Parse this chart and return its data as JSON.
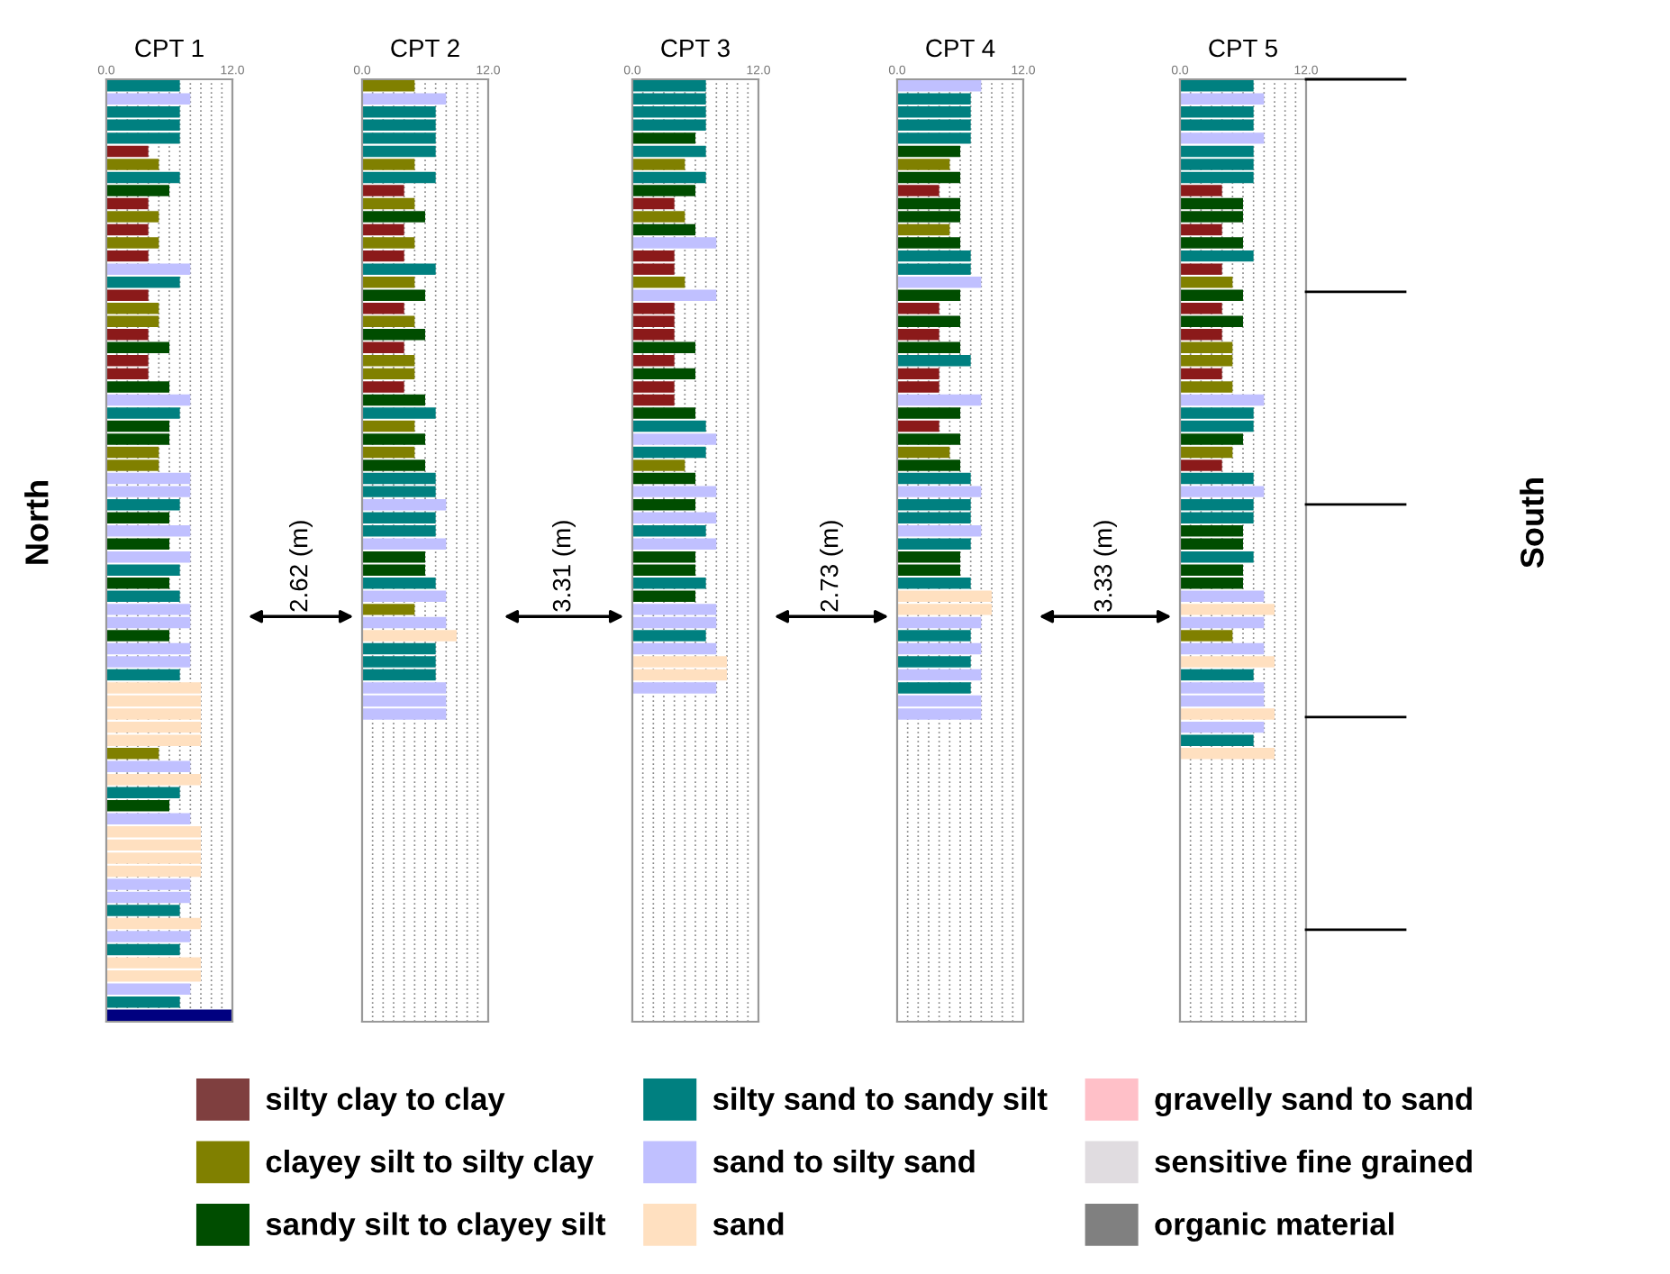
{
  "chart_data": [
    {
      "type": "bar",
      "orientation": "horizontal",
      "title": "CPT 1",
      "tick_labels": "x",
      "grid": "x",
      "xlim": [
        0,
        12
      ],
      "xticks": [
        {
          "value": 0,
          "label": "0.0"
        },
        {
          "value": 1,
          "label": null
        },
        {
          "value": 2,
          "label": null
        },
        {
          "value": 3,
          "label": null
        },
        {
          "value": 4,
          "label": null
        },
        {
          "value": 5,
          "label": null
        },
        {
          "value": 6,
          "label": null
        },
        {
          "value": 7,
          "label": null
        },
        {
          "value": 8,
          "label": null
        },
        {
          "value": 9,
          "label": null
        },
        {
          "value": 10,
          "label": null
        },
        {
          "value": 11,
          "label": null
        },
        {
          "value": 12,
          "label": "12.0"
        }
      ],
      "categories": [
        null,
        null,
        null,
        null,
        null,
        null,
        null,
        null,
        null,
        null,
        null,
        null,
        null,
        null,
        null,
        null,
        null,
        null,
        null,
        null,
        null,
        null,
        null,
        null,
        null,
        null,
        null,
        null,
        null,
        null,
        null,
        null,
        null,
        null,
        null,
        null,
        null,
        null,
        null,
        null,
        null,
        null,
        null,
        null,
        null,
        null,
        null,
        null,
        null,
        null,
        null,
        null,
        null,
        null,
        null,
        null,
        null,
        null,
        null,
        null,
        null,
        null,
        null,
        null,
        null,
        null,
        null,
        null,
        null,
        null,
        null,
        null
      ],
      "values": [
        7,
        8,
        7,
        7,
        7,
        4,
        5,
        7,
        6,
        4,
        5,
        4,
        5,
        4,
        8,
        7,
        4,
        5,
        5,
        4,
        6,
        4,
        4,
        6,
        8,
        7,
        6,
        6,
        5,
        5,
        8,
        8,
        7,
        6,
        8,
        6,
        8,
        7,
        6,
        7,
        8,
        8,
        6,
        8,
        8,
        7,
        9,
        9,
        9,
        9,
        9,
        5,
        8,
        9,
        7,
        6,
        8,
        9,
        9,
        9,
        9,
        8,
        8,
        7,
        9,
        8,
        7,
        9,
        9,
        8,
        7,
        12
      ],
      "colors": [
        "#008080",
        "#c0c0ff",
        "#008080",
        "#008080",
        "#008080",
        "#8b1a1a",
        "#808000",
        "#008080",
        "#004d00",
        "#8b1a1a",
        "#808000",
        "#8b1a1a",
        "#808000",
        "#8b1a1a",
        "#c0c0ff",
        "#008080",
        "#8b1a1a",
        "#808000",
        "#808000",
        "#8b1a1a",
        "#004d00",
        "#8b1a1a",
        "#8b1a1a",
        "#004d00",
        "#c0c0ff",
        "#008080",
        "#004d00",
        "#004d00",
        "#808000",
        "#808000",
        "#c0c0ff",
        "#c0c0ff",
        "#008080",
        "#004d00",
        "#c0c0ff",
        "#004d00",
        "#c0c0ff",
        "#008080",
        "#004d00",
        "#008080",
        "#c0c0ff",
        "#c0c0ff",
        "#004d00",
        "#c0c0ff",
        "#c0c0ff",
        "#008080",
        "#ffe0c0",
        "#ffe0c0",
        "#ffe0c0",
        "#ffe0c0",
        "#ffe0c0",
        "#808000",
        "#c0c0ff",
        "#ffe0c0",
        "#008080",
        "#004d00",
        "#c0c0ff",
        "#ffe0c0",
        "#ffe0c0",
        "#ffe0c0",
        "#ffe0c0",
        "#c0c0ff",
        "#c0c0ff",
        "#008080",
        "#ffe0c0",
        "#c0c0ff",
        "#008080",
        "#ffe0c0",
        "#ffe0c0",
        "#c0c0ff",
        "#008080",
        "#000080"
      ]
    },
    {
      "type": "bar",
      "orientation": "horizontal",
      "title": "CPT 2",
      "tick_labels": "x",
      "grid": "x",
      "xlim": [
        0,
        12
      ],
      "xticks": [
        {
          "value": 0,
          "label": "0.0"
        },
        {
          "value": 1,
          "label": null
        },
        {
          "value": 2,
          "label": null
        },
        {
          "value": 3,
          "label": null
        },
        {
          "value": 4,
          "label": null
        },
        {
          "value": 5,
          "label": null
        },
        {
          "value": 6,
          "label": null
        },
        {
          "value": 7,
          "label": null
        },
        {
          "value": 8,
          "label": null
        },
        {
          "value": 9,
          "label": null
        },
        {
          "value": 10,
          "label": null
        },
        {
          "value": 11,
          "label": null
        },
        {
          "value": 12,
          "label": "12.0"
        }
      ],
      "categories": [
        null,
        null,
        null,
        null,
        null,
        null,
        null,
        null,
        null,
        null,
        null,
        null,
        null,
        null,
        null,
        null,
        null,
        null,
        null,
        null,
        null,
        null,
        null,
        null,
        null,
        null,
        null,
        null,
        null,
        null,
        null,
        null,
        null,
        null,
        null,
        null,
        null,
        null,
        null,
        null,
        null,
        null,
        null,
        null,
        null,
        null,
        null,
        null,
        null,
        null,
        null,
        null,
        null,
        null,
        null,
        null,
        null,
        null,
        null,
        null,
        null,
        null,
        null,
        null,
        null,
        null,
        null,
        null,
        null,
        null,
        null,
        null
      ],
      "values": [
        5,
        8,
        7,
        7,
        7,
        7,
        5,
        7,
        4,
        5,
        6,
        4,
        5,
        4,
        7,
        5,
        6,
        4,
        5,
        6,
        4,
        5,
        5,
        4,
        6,
        7,
        5,
        6,
        5,
        6,
        7,
        7,
        8,
        7,
        7,
        8,
        6,
        6,
        7,
        8,
        5,
        8,
        9,
        7,
        7,
        7,
        8,
        8,
        8,
        null,
        null,
        null,
        null,
        null,
        null,
        null,
        null,
        null,
        null,
        null,
        null,
        null,
        null,
        null,
        null,
        null,
        null,
        null,
        null,
        null,
        null,
        null
      ],
      "colors": [
        "#808000",
        "#c0c0ff",
        "#008080",
        "#008080",
        "#008080",
        "#008080",
        "#808000",
        "#008080",
        "#8b1a1a",
        "#808000",
        "#004d00",
        "#8b1a1a",
        "#808000",
        "#8b1a1a",
        "#008080",
        "#808000",
        "#004d00",
        "#8b1a1a",
        "#808000",
        "#004d00",
        "#8b1a1a",
        "#808000",
        "#808000",
        "#8b1a1a",
        "#004d00",
        "#008080",
        "#808000",
        "#004d00",
        "#808000",
        "#004d00",
        "#008080",
        "#008080",
        "#c0c0ff",
        "#008080",
        "#008080",
        "#c0c0ff",
        "#004d00",
        "#004d00",
        "#008080",
        "#c0c0ff",
        "#808000",
        "#c0c0ff",
        "#ffe0c0",
        "#008080",
        "#008080",
        "#008080",
        "#c0c0ff",
        "#c0c0ff",
        "#c0c0ff",
        null,
        null,
        null,
        null,
        null,
        null,
        null,
        null,
        null,
        null,
        null,
        null,
        null,
        null,
        null,
        null,
        null,
        null,
        null,
        null,
        null,
        null,
        null
      ]
    },
    {
      "type": "bar",
      "orientation": "horizontal",
      "title": "CPT 3",
      "tick_labels": "x",
      "grid": "x",
      "xlim": [
        0,
        12
      ],
      "xticks": [
        {
          "value": 0,
          "label": "0.0"
        },
        {
          "value": 1,
          "label": null
        },
        {
          "value": 2,
          "label": null
        },
        {
          "value": 3,
          "label": null
        },
        {
          "value": 4,
          "label": null
        },
        {
          "value": 5,
          "label": null
        },
        {
          "value": 6,
          "label": null
        },
        {
          "value": 7,
          "label": null
        },
        {
          "value": 8,
          "label": null
        },
        {
          "value": 9,
          "label": null
        },
        {
          "value": 10,
          "label": null
        },
        {
          "value": 11,
          "label": null
        },
        {
          "value": 12,
          "label": "12.0"
        }
      ],
      "categories": [
        null,
        null,
        null,
        null,
        null,
        null,
        null,
        null,
        null,
        null,
        null,
        null,
        null,
        null,
        null,
        null,
        null,
        null,
        null,
        null,
        null,
        null,
        null,
        null,
        null,
        null,
        null,
        null,
        null,
        null,
        null,
        null,
        null,
        null,
        null,
        null,
        null,
        null,
        null,
        null,
        null,
        null,
        null,
        null,
        null,
        null,
        null,
        null,
        null,
        null,
        null,
        null,
        null,
        null,
        null,
        null,
        null,
        null,
        null,
        null,
        null,
        null,
        null,
        null,
        null,
        null,
        null,
        null,
        null,
        null,
        null,
        null
      ],
      "values": [
        7,
        7,
        7,
        7,
        6,
        7,
        5,
        7,
        6,
        4,
        5,
        6,
        8,
        4,
        4,
        5,
        8,
        4,
        4,
        4,
        6,
        4,
        6,
        4,
        4,
        6,
        7,
        8,
        7,
        5,
        6,
        8,
        6,
        8,
        7,
        8,
        6,
        6,
        7,
        6,
        8,
        8,
        7,
        8,
        9,
        9,
        8,
        null,
        null,
        null,
        null,
        null,
        null,
        null,
        null,
        null,
        null,
        null,
        null,
        null,
        null,
        null,
        null,
        null,
        null,
        null,
        null,
        null,
        null,
        null,
        null,
        null
      ],
      "colors": [
        "#008080",
        "#008080",
        "#008080",
        "#008080",
        "#004d00",
        "#008080",
        "#808000",
        "#008080",
        "#004d00",
        "#8b1a1a",
        "#808000",
        "#004d00",
        "#c0c0ff",
        "#8b1a1a",
        "#8b1a1a",
        "#808000",
        "#c0c0ff",
        "#8b1a1a",
        "#8b1a1a",
        "#8b1a1a",
        "#004d00",
        "#8b1a1a",
        "#004d00",
        "#8b1a1a",
        "#8b1a1a",
        "#004d00",
        "#008080",
        "#c0c0ff",
        "#008080",
        "#808000",
        "#004d00",
        "#c0c0ff",
        "#004d00",
        "#c0c0ff",
        "#008080",
        "#c0c0ff",
        "#004d00",
        "#004d00",
        "#008080",
        "#004d00",
        "#c0c0ff",
        "#c0c0ff",
        "#008080",
        "#c0c0ff",
        "#ffe0c0",
        "#ffe0c0",
        "#c0c0ff",
        null,
        null,
        null,
        null,
        null,
        null,
        null,
        null,
        null,
        null,
        null,
        null,
        null,
        null,
        null,
        null,
        null,
        null,
        null,
        null,
        null,
        null,
        null,
        null,
        null
      ]
    },
    {
      "type": "bar",
      "orientation": "horizontal",
      "title": "CPT 4",
      "tick_labels": "x",
      "grid": "x",
      "xlim": [
        0,
        12
      ],
      "xticks": [
        {
          "value": 0,
          "label": "0.0"
        },
        {
          "value": 1,
          "label": null
        },
        {
          "value": 2,
          "label": null
        },
        {
          "value": 3,
          "label": null
        },
        {
          "value": 4,
          "label": null
        },
        {
          "value": 5,
          "label": null
        },
        {
          "value": 6,
          "label": null
        },
        {
          "value": 7,
          "label": null
        },
        {
          "value": 8,
          "label": null
        },
        {
          "value": 9,
          "label": null
        },
        {
          "value": 10,
          "label": null
        },
        {
          "value": 11,
          "label": null
        },
        {
          "value": 12,
          "label": "12.0"
        }
      ],
      "categories": [
        null,
        null,
        null,
        null,
        null,
        null,
        null,
        null,
        null,
        null,
        null,
        null,
        null,
        null,
        null,
        null,
        null,
        null,
        null,
        null,
        null,
        null,
        null,
        null,
        null,
        null,
        null,
        null,
        null,
        null,
        null,
        null,
        null,
        null,
        null,
        null,
        null,
        null,
        null,
        null,
        null,
        null,
        null,
        null,
        null,
        null,
        null,
        null,
        null,
        null,
        null,
        null,
        null,
        null,
        null,
        null,
        null,
        null,
        null,
        null,
        null,
        null,
        null,
        null,
        null,
        null,
        null,
        null,
        null,
        null,
        null,
        null
      ],
      "values": [
        8,
        7,
        7,
        7,
        7,
        6,
        5,
        6,
        4,
        6,
        6,
        5,
        6,
        7,
        7,
        8,
        6,
        4,
        6,
        4,
        6,
        7,
        4,
        4,
        8,
        6,
        4,
        6,
        5,
        6,
        7,
        8,
        7,
        7,
        8,
        7,
        6,
        6,
        7,
        9,
        9,
        8,
        7,
        8,
        7,
        8,
        7,
        8,
        8,
        null,
        null,
        null,
        null,
        null,
        null,
        null,
        null,
        null,
        null,
        null,
        null,
        null,
        null,
        null,
        null,
        null,
        null,
        null,
        null,
        null,
        null,
        null
      ],
      "colors": [
        "#c0c0ff",
        "#008080",
        "#008080",
        "#008080",
        "#008080",
        "#004d00",
        "#808000",
        "#004d00",
        "#8b1a1a",
        "#004d00",
        "#004d00",
        "#808000",
        "#004d00",
        "#008080",
        "#008080",
        "#c0c0ff",
        "#004d00",
        "#8b1a1a",
        "#004d00",
        "#8b1a1a",
        "#004d00",
        "#008080",
        "#8b1a1a",
        "#8b1a1a",
        "#c0c0ff",
        "#004d00",
        "#8b1a1a",
        "#004d00",
        "#808000",
        "#004d00",
        "#008080",
        "#c0c0ff",
        "#008080",
        "#008080",
        "#c0c0ff",
        "#008080",
        "#004d00",
        "#004d00",
        "#008080",
        "#ffe0c0",
        "#ffe0c0",
        "#c0c0ff",
        "#008080",
        "#c0c0ff",
        "#008080",
        "#c0c0ff",
        "#008080",
        "#c0c0ff",
        "#c0c0ff",
        null,
        null,
        null,
        null,
        null,
        null,
        null,
        null,
        null,
        null,
        null,
        null,
        null,
        null,
        null,
        null,
        null,
        null,
        null,
        null,
        null,
        null,
        null
      ]
    },
    {
      "type": "bar",
      "orientation": "horizontal",
      "title": "CPT 5",
      "tick_labels": "x",
      "grid": "x",
      "xlim": [
        0,
        12
      ],
      "xticks": [
        {
          "value": 0,
          "label": "0.0"
        },
        {
          "value": 1,
          "label": null
        },
        {
          "value": 2,
          "label": null
        },
        {
          "value": 3,
          "label": null
        },
        {
          "value": 4,
          "label": null
        },
        {
          "value": 5,
          "label": null
        },
        {
          "value": 6,
          "label": null
        },
        {
          "value": 7,
          "label": null
        },
        {
          "value": 8,
          "label": null
        },
        {
          "value": 9,
          "label": null
        },
        {
          "value": 10,
          "label": null
        },
        {
          "value": 11,
          "label": null
        },
        {
          "value": 12,
          "label": "12.0"
        }
      ],
      "categories": [
        null,
        null,
        null,
        null,
        null,
        null,
        null,
        null,
        null,
        null,
        null,
        null,
        null,
        null,
        null,
        null,
        null,
        null,
        null,
        null,
        null,
        null,
        null,
        null,
        null,
        null,
        null,
        null,
        null,
        null,
        null,
        null,
        null,
        null,
        null,
        null,
        null,
        null,
        null,
        null,
        null,
        null,
        null,
        null,
        null,
        null,
        null,
        null,
        null,
        null,
        null,
        null,
        null,
        null,
        null,
        null,
        null,
        null,
        null,
        null,
        null,
        null,
        null,
        null,
        null,
        null,
        null,
        null,
        null,
        null,
        null,
        null
      ],
      "values": [
        7,
        8,
        7,
        7,
        8,
        7,
        7,
        7,
        4,
        6,
        6,
        4,
        6,
        7,
        4,
        5,
        6,
        4,
        6,
        4,
        5,
        5,
        4,
        5,
        8,
        7,
        7,
        6,
        5,
        4,
        7,
        8,
        7,
        7,
        6,
        6,
        7,
        6,
        6,
        8,
        9,
        8,
        5,
        8,
        9,
        7,
        8,
        8,
        9,
        8,
        7,
        9,
        null,
        null,
        null,
        null,
        null,
        null,
        null,
        null,
        null,
        null,
        null,
        null,
        null,
        null,
        null,
        null,
        null,
        null,
        null,
        null
      ],
      "colors": [
        "#008080",
        "#c0c0ff",
        "#008080",
        "#008080",
        "#c0c0ff",
        "#008080",
        "#008080",
        "#008080",
        "#8b1a1a",
        "#004d00",
        "#004d00",
        "#8b1a1a",
        "#004d00",
        "#008080",
        "#8b1a1a",
        "#808000",
        "#004d00",
        "#8b1a1a",
        "#004d00",
        "#8b1a1a",
        "#808000",
        "#808000",
        "#8b1a1a",
        "#808000",
        "#c0c0ff",
        "#008080",
        "#008080",
        "#004d00",
        "#808000",
        "#8b1a1a",
        "#008080",
        "#c0c0ff",
        "#008080",
        "#008080",
        "#004d00",
        "#004d00",
        "#008080",
        "#004d00",
        "#004d00",
        "#c0c0ff",
        "#ffe0c0",
        "#c0c0ff",
        "#808000",
        "#c0c0ff",
        "#ffe0c0",
        "#008080",
        "#c0c0ff",
        "#c0c0ff",
        "#ffe0c0",
        "#c0c0ff",
        "#008080",
        "#ffe0c0",
        null,
        null,
        null,
        null,
        null,
        null,
        null,
        null,
        null,
        null,
        null,
        null,
        null,
        null,
        null,
        null,
        null,
        null,
        null,
        null
      ]
    },
    {
      "type": "other",
      "categories": [
        "silty clay to clay",
        "clayey silt to silty clay",
        "sandy silt to clayey silt",
        "silty sand to sandy silt",
        "sand to silty sand",
        "sand",
        "gravelly sand to sand",
        "sensitive fine grained",
        "organic material"
      ],
      "colors": [
        "#7f3f3f",
        "#808000",
        "#004d00",
        "#008080",
        "#c0c0ff",
        "#ffe0c0",
        "#ffc0c8",
        "#e0dce0",
        "#808080"
      ],
      "annotations": [
        "North",
        "2.62 (m)",
        "3.31 (m)",
        "2.73 (m)",
        "3.33 (m)",
        "South"
      ]
    }
  ]
}
